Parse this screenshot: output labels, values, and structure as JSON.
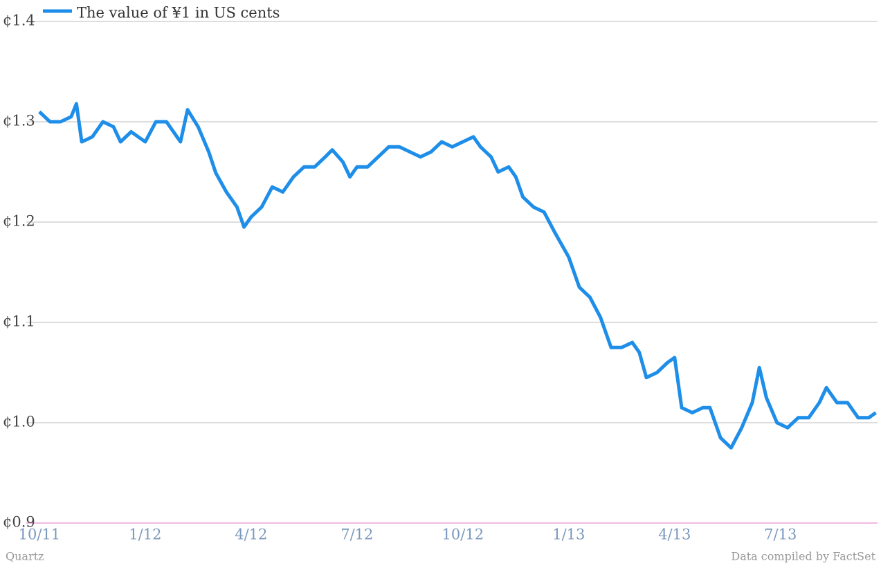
{
  "chart_data": {
    "type": "line",
    "series": [
      {
        "name": "The value of ¥1 in US cents",
        "color": "#1e8ee8",
        "values": [
          1.31,
          1.3,
          1.3,
          1.305,
          1.318,
          1.28,
          1.285,
          1.3,
          1.295,
          1.28,
          1.29,
          1.28,
          1.3,
          1.3,
          1.28,
          1.312,
          1.295,
          1.27,
          1.249,
          1.23,
          1.215,
          1.195,
          1.205,
          1.215,
          1.235,
          1.23,
          1.245,
          1.255,
          1.255,
          1.265,
          1.272,
          1.26,
          1.245,
          1.255,
          1.255,
          1.265,
          1.275,
          1.275,
          1.27,
          1.265,
          1.27,
          1.28,
          1.275,
          1.28,
          1.285,
          1.275,
          1.265,
          1.25,
          1.255,
          1.245,
          1.225,
          1.215,
          1.21,
          1.19,
          1.165,
          1.135,
          1.125,
          1.105,
          1.075,
          1.075,
          1.08,
          1.07,
          1.045,
          1.05,
          1.06,
          1.065,
          1.015,
          1.01,
          1.015,
          1.015,
          0.985,
          0.975,
          0.995,
          1.02,
          1.055,
          1.025,
          1.0,
          0.995,
          1.005,
          1.005,
          1.02,
          1.035,
          1.02,
          1.02,
          1.005,
          1.005,
          1.01
        ]
      }
    ],
    "x": [
      0,
      0.3,
      0.6,
      0.9,
      1.05,
      1.2,
      1.5,
      1.8,
      2.1,
      2.3,
      2.6,
      3.0,
      3.3,
      3.6,
      4.0,
      4.2,
      4.5,
      4.8,
      5.0,
      5.3,
      5.6,
      5.8,
      6.0,
      6.3,
      6.6,
      6.9,
      7.2,
      7.5,
      7.8,
      8.1,
      8.3,
      8.6,
      8.8,
      9.0,
      9.3,
      9.6,
      9.9,
      10.2,
      10.5,
      10.8,
      11.1,
      11.4,
      11.7,
      12.0,
      12.3,
      12.5,
      12.8,
      13.0,
      13.3,
      13.5,
      13.7,
      14.0,
      14.3,
      14.6,
      15.0,
      15.3,
      15.6,
      15.9,
      16.2,
      16.5,
      16.8,
      17.0,
      17.2,
      17.5,
      17.8,
      18.0,
      18.2,
      18.5,
      18.8,
      19.0,
      19.3,
      19.6,
      19.9,
      20.2,
      20.4,
      20.6,
      20.9,
      21.2,
      21.5,
      21.8,
      22.1,
      22.3,
      22.6,
      22.9,
      23.2,
      23.5,
      23.7
    ],
    "xlim": [
      -0.37,
      23.75
    ],
    "xticks": [
      {
        "value": 0,
        "label": "10/11"
      },
      {
        "value": 3,
        "label": "1/12"
      },
      {
        "value": 6,
        "label": "4/12"
      },
      {
        "value": 9,
        "label": "7/12"
      },
      {
        "value": 12,
        "label": "10/12"
      },
      {
        "value": 15,
        "label": "1/13"
      },
      {
        "value": 18,
        "label": "4/13"
      },
      {
        "value": 21,
        "label": "7/13"
      }
    ],
    "ylim": [
      0.9,
      1.4
    ],
    "yticks": [
      {
        "value": 0.9,
        "label": "¢0.9"
      },
      {
        "value": 1.0,
        "label": "¢1.0"
      },
      {
        "value": 1.1,
        "label": "¢1.1"
      },
      {
        "value": 1.2,
        "label": "¢1.2"
      },
      {
        "value": 1.3,
        "label": "¢1.3"
      },
      {
        "value": 1.4,
        "label": "¢1.4"
      }
    ],
    "grid": true,
    "legend": "top-left",
    "source_left": "Quartz",
    "source_right": "Data compiled by FactSet"
  }
}
